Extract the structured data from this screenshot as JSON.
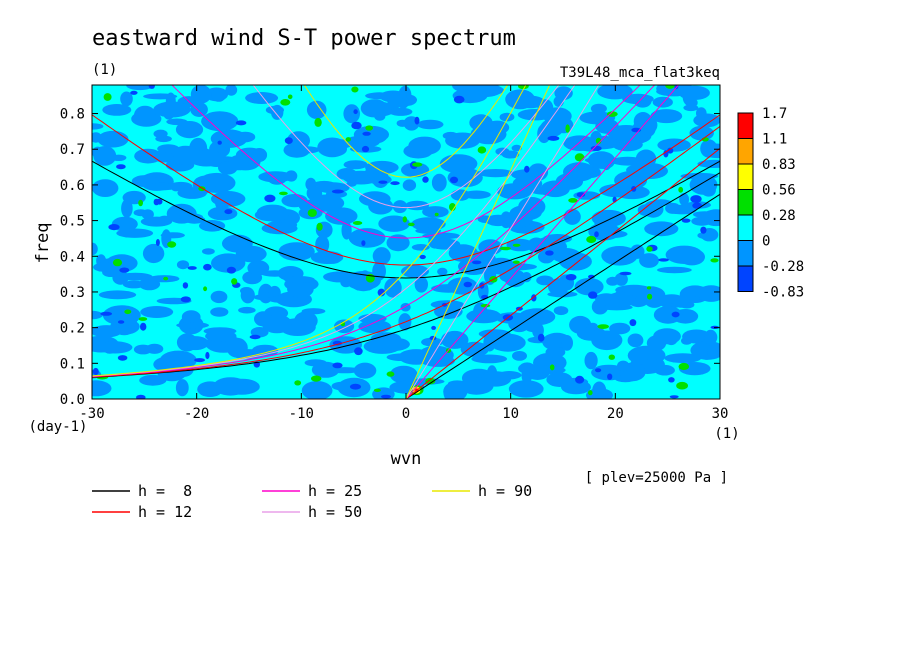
{
  "title": "eastward wind S-T power spectrum",
  "subtitle_left": "(1)",
  "subtitle_right": "T39L48_mca_flat3keq",
  "x_unit": "(1)",
  "y_unit": "(day-1)",
  "note": "[ plev=25000 Pa ]",
  "chart_data": {
    "type": "heatmap",
    "title": "eastward wind S-T power spectrum",
    "xlabel": "wvn",
    "ylabel": "freq",
    "xlim": [
      -30,
      30
    ],
    "ylim": [
      0,
      0.88
    ],
    "xticks": [
      "-30",
      "-20",
      "-10",
      "0",
      "10",
      "20",
      "30"
    ],
    "yticks": [
      "0.0",
      "0.1",
      "0.2",
      "0.3",
      "0.4",
      "0.5",
      "0.6",
      "0.7",
      "0.8"
    ],
    "field": "noisy normalized power, mostly between -0.28 and 0.28, with a maximum near wvn 0-1, freq 0.02",
    "colorbar": {
      "levels": [
        "1.7",
        "1.1",
        "0.83",
        "0.56",
        "0.28",
        "0",
        "-0.28",
        "-0.83"
      ],
      "colors": [
        "#ff0000",
        "#ffa500",
        "#ffff00",
        "#00e000",
        "#00ffff",
        "#0095ff",
        "#0044ff"
      ]
    },
    "series": [
      {
        "name": "h =  8",
        "h": 8,
        "color": "#000000"
      },
      {
        "name": "h = 12",
        "h": 12,
        "color": "#ff0000"
      },
      {
        "name": "h = 25",
        "h": 25,
        "color": "#ff00cc"
      },
      {
        "name": "h = 50",
        "h": 50,
        "color": "#e8a0e8"
      },
      {
        "name": "h = 90",
        "h": 90,
        "color": "#e8e800"
      }
    ]
  }
}
